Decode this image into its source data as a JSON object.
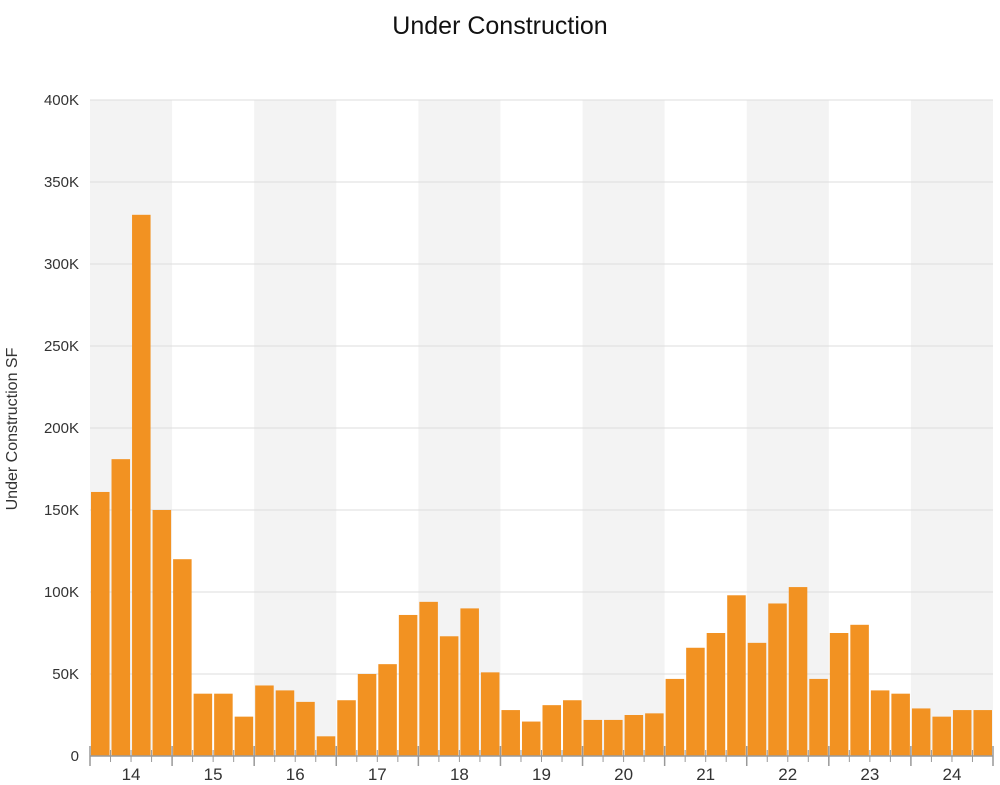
{
  "chart_data": {
    "type": "bar",
    "title": "Under Construction",
    "ylabel": "Under Construction SF",
    "xlabel": "",
    "ylim": [
      0,
      400000
    ],
    "yticks": [
      0,
      50000,
      100000,
      150000,
      200000,
      250000,
      300000,
      350000,
      400000
    ],
    "ytick_labels": [
      "0",
      "50K",
      "100K",
      "150K",
      "200K",
      "250K",
      "300K",
      "350K",
      "400K"
    ],
    "year_labels": [
      "14",
      "15",
      "16",
      "17",
      "18",
      "19",
      "20",
      "21",
      "22",
      "23",
      "24"
    ],
    "bars_per_year": 4,
    "bar_color": "#F29222",
    "band_color": "#F3F3F3",
    "grid": true,
    "values": [
      161000,
      181000,
      330000,
      150000,
      120000,
      38000,
      38000,
      24000,
      43000,
      40000,
      33000,
      12000,
      34000,
      50000,
      56000,
      86000,
      94000,
      73000,
      90000,
      51000,
      28000,
      21000,
      31000,
      34000,
      22000,
      22000,
      25000,
      26000,
      47000,
      66000,
      75000,
      98000,
      69000,
      93000,
      103000,
      47000,
      75000,
      80000,
      40000,
      38000,
      29000,
      24000,
      28000,
      28000
    ]
  }
}
